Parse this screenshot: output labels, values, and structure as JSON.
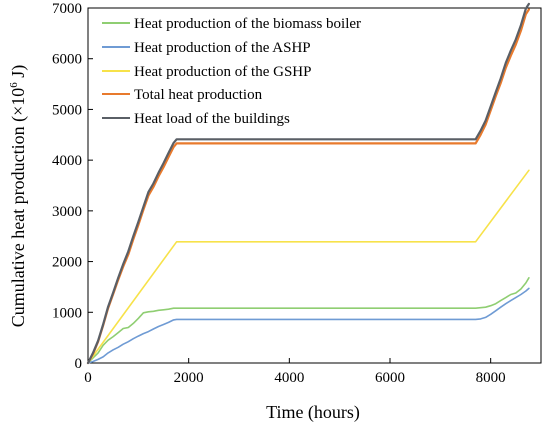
{
  "chart_data": {
    "type": "line",
    "title": "",
    "xlabel": "Time (hours)",
    "ylabel": "Cumulative heat production (×10",
    "ylabel_exp": "6",
    "ylabel_unit": " J)",
    "xlim": [
      0,
      9000
    ],
    "ylim": [
      0,
      7000
    ],
    "xticks": [
      0,
      2000,
      4000,
      6000,
      8000
    ],
    "yticks": [
      0,
      1000,
      2000,
      3000,
      4000,
      5000,
      6000,
      7000
    ],
    "grid": false,
    "legend_position": "top-left",
    "series": [
      {
        "name": "Heat production of the biomass boiler",
        "color": "#8fce72",
        "x": [
          0,
          100,
          200,
          300,
          400,
          500,
          600,
          700,
          800,
          900,
          1000,
          1100,
          1200,
          1300,
          1400,
          1500,
          1600,
          1700,
          1760,
          2000,
          4000,
          6000,
          7700,
          7800,
          7900,
          8000,
          8100,
          8200,
          8300,
          8400,
          8500,
          8600,
          8700,
          8760
        ],
        "y": [
          0,
          100,
          200,
          350,
          450,
          520,
          600,
          680,
          700,
          780,
          880,
          990,
          1010,
          1020,
          1040,
          1050,
          1060,
          1080,
          1080,
          1080,
          1080,
          1080,
          1080,
          1090,
          1100,
          1130,
          1170,
          1230,
          1290,
          1350,
          1380,
          1460,
          1580,
          1680
        ]
      },
      {
        "name": "Heat production of the ASHP",
        "color": "#6f9bd4",
        "x": [
          0,
          100,
          200,
          300,
          400,
          500,
          600,
          700,
          800,
          900,
          1000,
          1100,
          1200,
          1300,
          1400,
          1500,
          1600,
          1700,
          1760,
          2000,
          4000,
          6000,
          7700,
          7800,
          7900,
          8000,
          8100,
          8200,
          8300,
          8400,
          8500,
          8600,
          8700,
          8760
        ],
        "y": [
          0,
          30,
          70,
          120,
          200,
          260,
          310,
          370,
          420,
          480,
          530,
          580,
          620,
          670,
          720,
          760,
          800,
          850,
          860,
          860,
          860,
          860,
          860,
          870,
          900,
          960,
          1030,
          1100,
          1170,
          1230,
          1290,
          1350,
          1420,
          1470
        ]
      },
      {
        "name": "Heat production of the GSHP",
        "color": "#f7e24a",
        "x": [
          0,
          1760,
          7700,
          8760
        ],
        "y": [
          0,
          2390,
          2390,
          3800
        ]
      },
      {
        "name": "Total heat production",
        "color": "#e87a2d",
        "x": [
          0,
          100,
          200,
          300,
          400,
          500,
          600,
          700,
          800,
          900,
          1000,
          1100,
          1200,
          1300,
          1400,
          1500,
          1600,
          1700,
          1760,
          2000,
          4000,
          6000,
          7700,
          7800,
          7900,
          8000,
          8100,
          8200,
          8300,
          8400,
          8500,
          8600,
          8700,
          8760
        ],
        "y": [
          0,
          180,
          420,
          740,
          1080,
          1360,
          1640,
          1900,
          2140,
          2440,
          2720,
          3020,
          3300,
          3470,
          3680,
          3860,
          4060,
          4260,
          4330,
          4330,
          4330,
          4330,
          4330,
          4500,
          4700,
          4980,
          5260,
          5520,
          5820,
          6060,
          6280,
          6550,
          6880,
          6970
        ]
      },
      {
        "name": "Heat load of the buildings",
        "color": "#5a5f66",
        "x": [
          0,
          100,
          200,
          300,
          400,
          500,
          600,
          700,
          800,
          900,
          1000,
          1100,
          1200,
          1300,
          1400,
          1500,
          1600,
          1700,
          1760,
          2000,
          4000,
          6000,
          7700,
          7800,
          7900,
          8000,
          8100,
          8200,
          8300,
          8400,
          8500,
          8600,
          8700,
          8760
        ],
        "y": [
          0,
          200,
          440,
          760,
          1110,
          1390,
          1680,
          1950,
          2200,
          2500,
          2780,
          3080,
          3370,
          3540,
          3750,
          3940,
          4140,
          4340,
          4410,
          4410,
          4410,
          4410,
          4410,
          4580,
          4780,
          5060,
          5340,
          5610,
          5920,
          6160,
          6380,
          6660,
          6990,
          7080
        ]
      }
    ]
  }
}
